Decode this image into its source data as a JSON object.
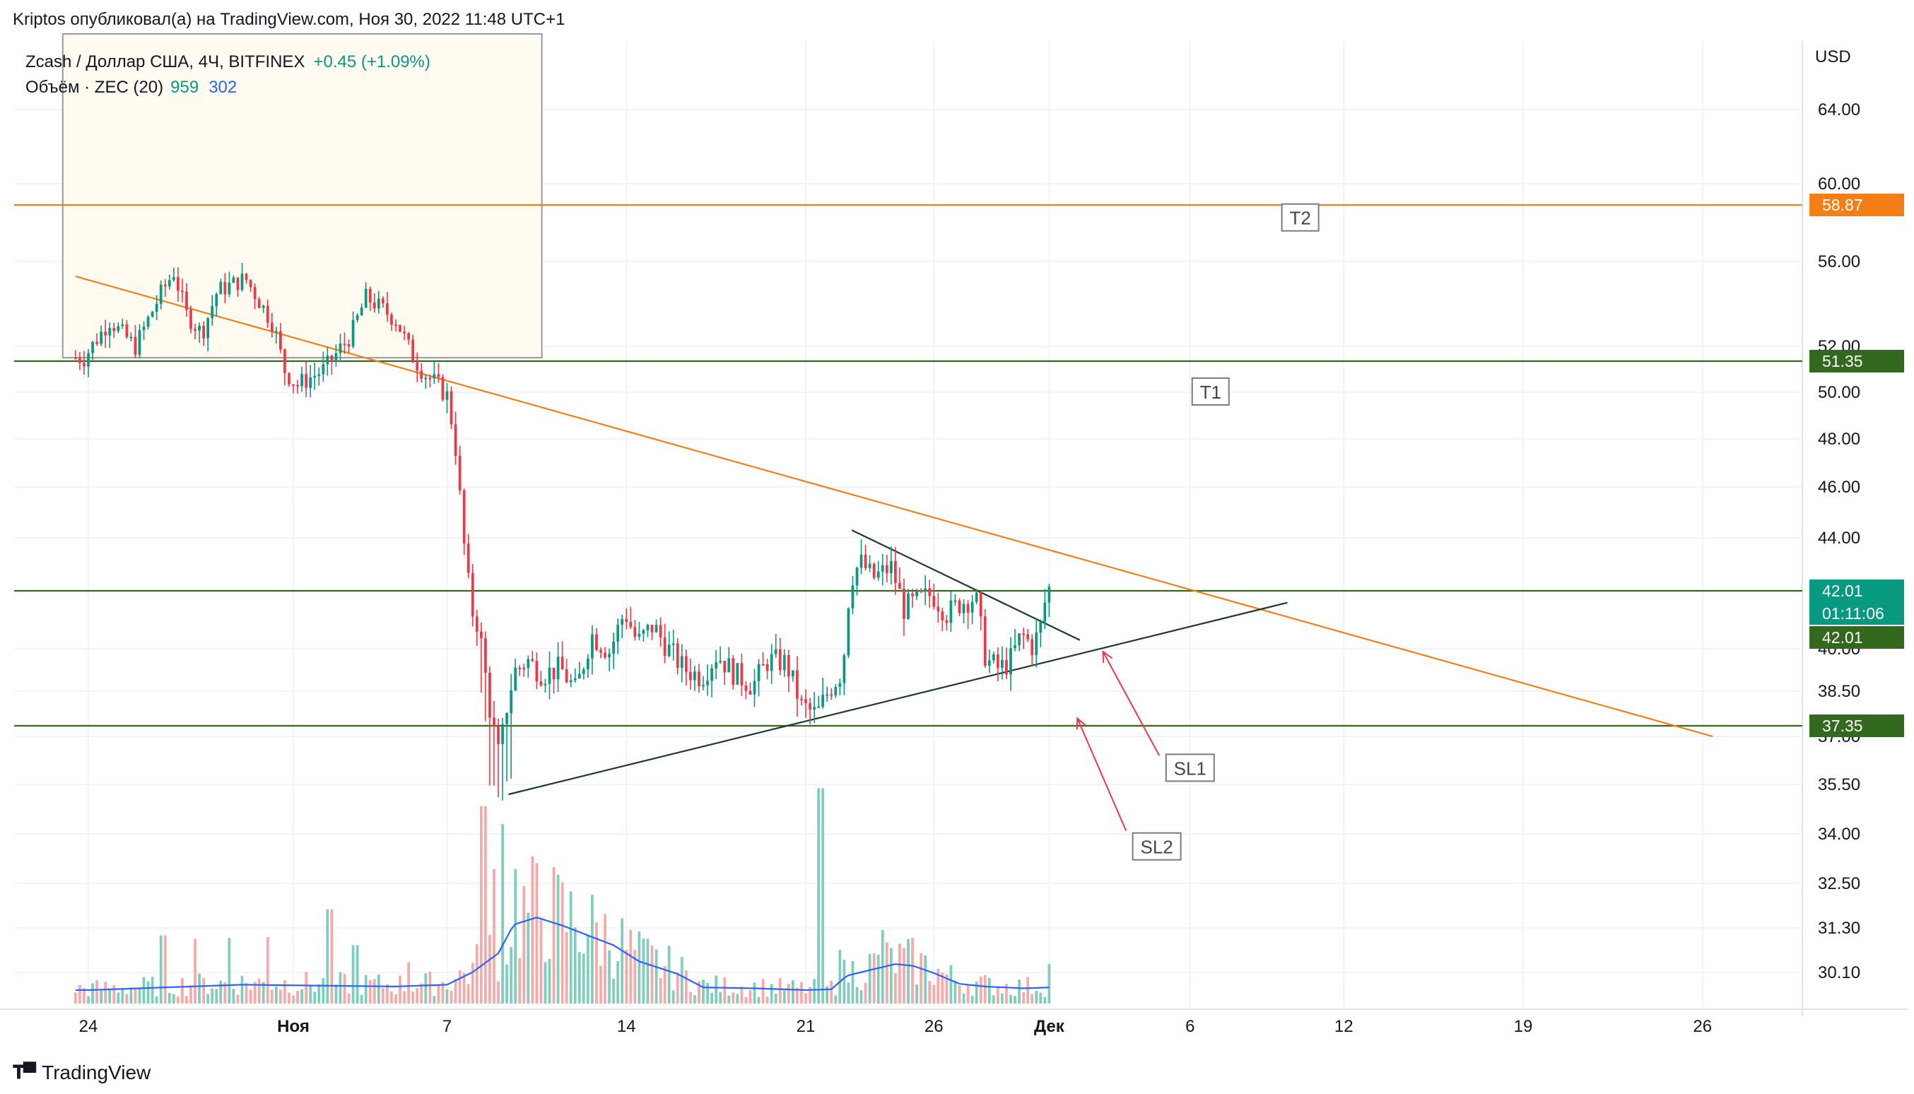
{
  "header": {
    "published_by": "Kriptos опубликовал(а) на TradingView.com, Ноя 30, 2022 11:48 UTC+1"
  },
  "legend": {
    "symbol": "Zcash / Доллар США, 4Ч, BITFINEX",
    "change": "+0.45 (+1.09%)",
    "volume_label": "Объём · ZEC (20)",
    "volume_value": "959",
    "volume_ma": "302"
  },
  "footer": {
    "logo_text": "TradingView",
    "logo_icon": "tradingview-logo-icon"
  },
  "colors": {
    "up": "#089981",
    "down": "#f23645",
    "volume_up": "#7fcdbd",
    "volume_down": "#f7a9a7",
    "volume_ma": "#2962ff",
    "orange": "#f57f17",
    "green_level": "#33691e",
    "trend_dark": "#1e3a2b",
    "arrow_red": "#f23645",
    "badge_orange": "#f57f17",
    "badge_green": "#33691e",
    "badge_current": "#089981"
  },
  "chart_data": {
    "type": "candlestick",
    "title": "Zcash / Доллар США, 4Ч, BITFINEX",
    "currency_label": "USD",
    "y_ticks": [
      "64.00",
      "60.00",
      "56.00",
      "52.00",
      "50.00",
      "48.00",
      "46.00",
      "44.00",
      "40.00",
      "38.50",
      "37.00",
      "35.50",
      "34.00",
      "32.50",
      "31.30",
      "30.10"
    ],
    "x_ticks": [
      {
        "label": "24",
        "day": 0
      },
      {
        "label": "Ноя",
        "day": 8
      },
      {
        "label": "7",
        "day": 14
      },
      {
        "label": "14",
        "day": 21
      },
      {
        "label": "21",
        "day": 28
      },
      {
        "label": "26",
        "day": 33
      },
      {
        "label": "Дек",
        "day": 37.5
      },
      {
        "label": "6",
        "day": 43
      },
      {
        "label": "12",
        "day": 49
      },
      {
        "label": "19",
        "day": 56
      },
      {
        "label": "26",
        "day": 63
      }
    ],
    "start_date": "2022-10-24",
    "end_date": "2022-11-30",
    "price_anchors": [
      {
        "price": 64.0
      },
      {
        "price": 60.0
      },
      {
        "price": 56.0
      },
      {
        "price": 52.0
      },
      {
        "price": 50.0
      },
      {
        "price": 48.0
      },
      {
        "price": 46.0
      },
      {
        "price": 44.0
      },
      {
        "price": 40.0
      },
      {
        "price": 38.5
      },
      {
        "price": 37.0
      },
      {
        "price": 35.5
      },
      {
        "price": 34.0
      },
      {
        "price": 32.5
      },
      {
        "price": 31.3
      },
      {
        "price": 30.1
      }
    ],
    "price_path": [
      [
        0,
        51.5
      ],
      [
        1,
        53.2
      ],
      [
        2,
        52.0
      ],
      [
        3,
        54.5
      ],
      [
        3.5,
        55.5
      ],
      [
        4,
        53.5
      ],
      [
        4.6,
        52.6
      ],
      [
        5.2,
        54.6
      ],
      [
        6.3,
        55.2
      ],
      [
        7.4,
        53.0
      ],
      [
        7.8,
        51.0
      ],
      [
        8.3,
        50.3
      ],
      [
        9.4,
        51.0
      ],
      [
        10.4,
        52.5
      ],
      [
        11.0,
        54.3
      ],
      [
        11.6,
        53.8
      ],
      [
        12.2,
        53.2
      ],
      [
        12.8,
        51.6
      ],
      [
        13.3,
        50.8
      ],
      [
        13.8,
        50.3
      ],
      [
        14.2,
        49.8
      ],
      [
        14.5,
        47.6
      ],
      [
        14.8,
        44.0
      ],
      [
        15.1,
        41.4
      ],
      [
        15.4,
        40.8
      ],
      [
        15.6,
        39.5
      ],
      [
        15.9,
        37.5
      ],
      [
        16.2,
        36.3
      ],
      [
        16.5,
        38.0
      ],
      [
        16.8,
        39.2
      ],
      [
        17.3,
        39.6
      ],
      [
        17.9,
        39.1
      ],
      [
        18.6,
        39.3
      ],
      [
        19.2,
        38.5
      ],
      [
        19.8,
        40.5
      ],
      [
        20.5,
        39.9
      ],
      [
        21.1,
        41.3
      ],
      [
        21.6,
        40.2
      ],
      [
        22.2,
        40.8
      ],
      [
        22.8,
        40.0
      ],
      [
        23.4,
        39.3
      ],
      [
        24.1,
        39.0
      ],
      [
        24.7,
        39.8
      ],
      [
        25.4,
        39.1
      ],
      [
        26.1,
        38.7
      ],
      [
        26.7,
        39.6
      ],
      [
        27.4,
        39.5
      ],
      [
        28.0,
        38.0
      ],
      [
        28.6,
        37.7
      ],
      [
        29.1,
        38.6
      ],
      [
        29.6,
        39.2
      ],
      [
        29.9,
        42.4
      ],
      [
        30.3,
        43.1
      ],
      [
        30.8,
        42.5
      ],
      [
        31.5,
        42.9
      ],
      [
        32.0,
        41.4
      ],
      [
        32.6,
        41.7
      ],
      [
        33.1,
        41.9
      ],
      [
        33.7,
        41.2
      ],
      [
        34.2,
        41.6
      ],
      [
        34.8,
        41.8
      ],
      [
        35.2,
        39.6
      ],
      [
        35.7,
        39.3
      ],
      [
        36.1,
        39.5
      ],
      [
        36.6,
        40.5
      ],
      [
        37.0,
        40.1
      ],
      [
        37.3,
        40.6
      ],
      [
        37.6,
        42.1
      ]
    ],
    "volume_scale_max": 2600,
    "volume_ma_path": [
      [
        0,
        150
      ],
      [
        3,
        180
      ],
      [
        6,
        210
      ],
      [
        9,
        200
      ],
      [
        12,
        190
      ],
      [
        14,
        210
      ],
      [
        15,
        350
      ],
      [
        16,
        560
      ],
      [
        16.6,
        880
      ],
      [
        17.5,
        960
      ],
      [
        18.5,
        870
      ],
      [
        19.5,
        760
      ],
      [
        20.5,
        650
      ],
      [
        21.5,
        470
      ],
      [
        23,
        330
      ],
      [
        24,
        180
      ],
      [
        26,
        170
      ],
      [
        28,
        150
      ],
      [
        29,
        160
      ],
      [
        29.6,
        310
      ],
      [
        30.6,
        380
      ],
      [
        31.5,
        440
      ],
      [
        32.2,
        420
      ],
      [
        33,
        340
      ],
      [
        34,
        220
      ],
      [
        35,
        190
      ],
      [
        36.5,
        170
      ],
      [
        37.6,
        180
      ]
    ],
    "volume_spikes": [
      [
        2.9,
        760
      ],
      [
        4.2,
        720
      ],
      [
        5.5,
        730
      ],
      [
        7.0,
        740
      ],
      [
        9.4,
        1050
      ],
      [
        10.4,
        650
      ],
      [
        12.5,
        460
      ],
      [
        15.4,
        2200
      ],
      [
        15.8,
        1500
      ],
      [
        16.2,
        2000
      ],
      [
        16.7,
        1500
      ],
      [
        17.4,
        660
      ],
      [
        18.2,
        740
      ],
      [
        19.0,
        460
      ],
      [
        28.6,
        2400
      ],
      [
        29.4,
        600
      ],
      [
        31.0,
        820
      ],
      [
        37.5,
        440
      ]
    ],
    "levels": [
      {
        "price": 58.87,
        "label": "58.87",
        "color": "#f57f17"
      },
      {
        "price": 51.35,
        "label": "51.35",
        "color": "#33691e"
      },
      {
        "price": 42.01,
        "label": "42.01",
        "color": "#33691e"
      },
      {
        "price": 37.35,
        "label": "37.35",
        "color": "#33691e"
      }
    ],
    "current_price": {
      "price": 42.01,
      "label": "42.01",
      "countdown": "01:11:06",
      "color": "#089981"
    },
    "current_price_secondary": {
      "label": "42.01"
    },
    "trendlines": [
      {
        "name": "descending-orange",
        "color": "#f57f17",
        "from": [
          -0.5,
          55.3
        ],
        "to": [
          63.4,
          37.0
        ]
      },
      {
        "name": "triangle-upper",
        "color": "#1e3a2b",
        "from": [
          29.8,
          44.3
        ],
        "to": [
          38.7,
          40.3
        ]
      },
      {
        "name": "triangle-lower",
        "color": "#1e3a2b",
        "from": [
          16.4,
          35.2
        ],
        "to": [
          46.8,
          41.6
        ]
      }
    ],
    "labels": [
      {
        "text": "T2",
        "day": 47.3,
        "price": 58.2
      },
      {
        "text": "T1",
        "day": 43.8,
        "price": 50.0
      },
      {
        "text": "SL1",
        "day": 43.0,
        "price": 36.0
      },
      {
        "text": "SL2",
        "day": 41.7,
        "price": 33.6
      }
    ],
    "arrows": [
      {
        "name": "sl1-arrow",
        "from": [
          41.8,
          36.4
        ],
        "to": [
          39.6,
          39.9
        ]
      },
      {
        "name": "sl2-arrow",
        "from": [
          40.5,
          34.1
        ],
        "to": [
          38.6,
          37.6
        ]
      }
    ],
    "highlight_box": {
      "from_day": -1,
      "to_day": 17.7,
      "top_price": 68.0,
      "bottom_price": 51.5
    }
  }
}
